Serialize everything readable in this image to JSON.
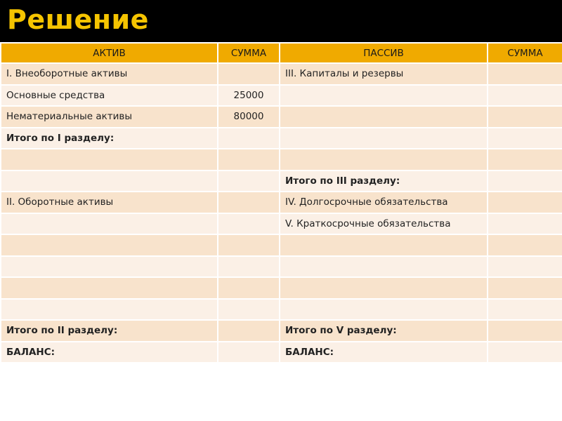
{
  "title": "Решение",
  "colors": {
    "title": "#f5c400",
    "header_bg": "#f0aa00",
    "row_dark": "#f8e3cc",
    "row_light": "#fbf0e6"
  },
  "table": {
    "headers": [
      "АКТИВ",
      "СУММА",
      "ПАССИВ",
      "СУММА"
    ],
    "rows": [
      {
        "bold": false,
        "cells": [
          "I. Внеоборотные активы",
          "",
          "III. Капиталы и резервы",
          ""
        ]
      },
      {
        "bold": false,
        "cells": [
          "Основные средства",
          "25000",
          "",
          ""
        ]
      },
      {
        "bold": false,
        "cells": [
          "Нематериальные активы",
          "80000",
          "",
          ""
        ]
      },
      {
        "bold": true,
        "cells": [
          "Итого по I разделу:",
          "",
          "",
          ""
        ]
      },
      {
        "bold": false,
        "cells": [
          "",
          "",
          "",
          ""
        ]
      },
      {
        "bold": true,
        "cells": [
          "",
          "",
          "Итого по III разделу:",
          ""
        ]
      },
      {
        "bold": false,
        "cells": [
          "II. Оборотные активы",
          "",
          "IV. Долгосрочные обязательства",
          ""
        ]
      },
      {
        "bold": false,
        "cells": [
          "",
          "",
          "V. Краткосрочные обязательства",
          ""
        ]
      },
      {
        "bold": false,
        "cells": [
          "",
          "",
          "",
          ""
        ]
      },
      {
        "bold": false,
        "cells": [
          "",
          "",
          "",
          ""
        ]
      },
      {
        "bold": false,
        "cells": [
          "",
          "",
          "",
          ""
        ]
      },
      {
        "bold": false,
        "cells": [
          "",
          "",
          "",
          ""
        ]
      },
      {
        "bold": true,
        "cells": [
          "Итого по II разделу:",
          "",
          "Итого по V разделу:",
          ""
        ]
      },
      {
        "bold": true,
        "cells": [
          "БАЛАНС:",
          "",
          "БАЛАНС:",
          ""
        ]
      }
    ]
  }
}
